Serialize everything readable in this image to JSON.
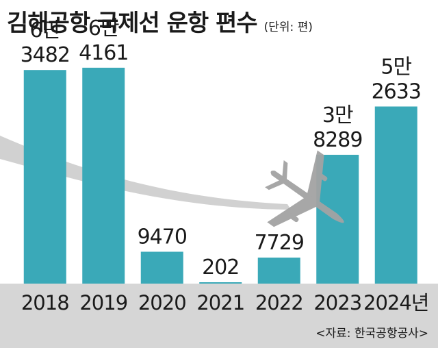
{
  "header": {
    "title": "김해공항 국제선 운항 편수",
    "unit": "(단위: 편)"
  },
  "source": "<자료: 한국공항공사>",
  "colors": {
    "bar": "#3aa9b8",
    "axis_band": "#d6d6d6",
    "text": "#1a1a1a",
    "swoosh": "#c9c9c9",
    "plane": "#a3a3a3"
  },
  "decoration": "airplane-with-contrail",
  "chart_data": {
    "type": "bar",
    "title": "김해공항 국제선 운항 편수",
    "unit": "편",
    "categories": [
      "2018",
      "2019",
      "2020",
      "2021",
      "2022",
      "2023",
      "2024년"
    ],
    "values": [
      63482,
      64161,
      9470,
      202,
      7729,
      38289,
      52633
    ],
    "value_labels": [
      [
        "6만",
        "3482"
      ],
      [
        "6만",
        "4161"
      ],
      [
        "9470"
      ],
      [
        "202"
      ],
      [
        "7729"
      ],
      [
        "3만",
        "8289"
      ],
      [
        "5만",
        "2633"
      ]
    ],
    "ylim": [
      0,
      68000
    ],
    "grid": false,
    "legend": "none"
  }
}
